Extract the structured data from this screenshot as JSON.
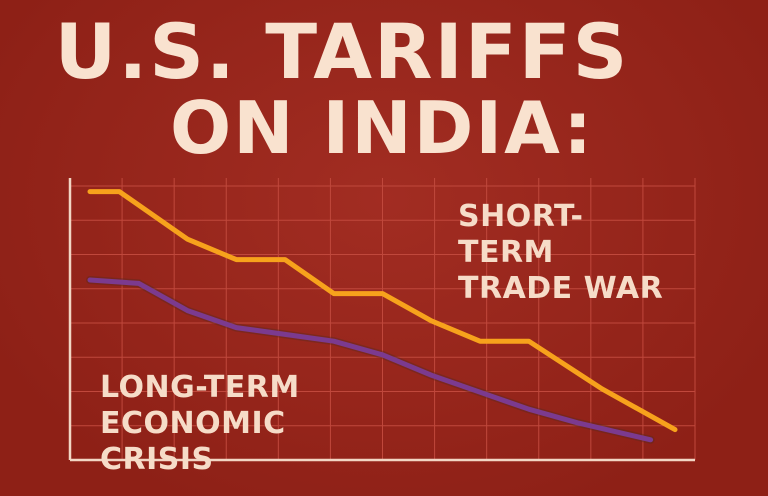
{
  "title": {
    "line1": "U.S. TARIFFS",
    "line2": "ON INDIA:"
  },
  "colors": {
    "background": "#9e2419",
    "title_text": "#f9e2cf",
    "grid": "#c0483c",
    "axis": "#f2d6c4",
    "short_term_line": "#f7a21c",
    "long_term_line": "#7b3a8f"
  },
  "chart_data": {
    "type": "line",
    "title": "U.S. TARIFFS ON INDIA:",
    "xlabel": "",
    "ylabel": "",
    "grid": true,
    "xlim": [
      0,
      12
    ],
    "ylim": [
      0,
      8
    ],
    "series": [
      {
        "name": "SHORT-TERM TRADE WAR",
        "x": [
          0,
          0.6,
          2,
          3,
          4,
          5,
          6,
          7,
          8,
          9,
          10.5,
          12
        ],
        "y": [
          7.6,
          7.6,
          6.2,
          5.6,
          5.6,
          4.6,
          4.6,
          3.8,
          3.2,
          3.2,
          1.8,
          0.6
        ]
      },
      {
        "name": "LONG-TERM ECONOMIC CRISIS",
        "x": [
          0,
          1,
          2,
          3,
          4,
          5,
          6,
          7,
          8,
          9,
          10,
          11.5
        ],
        "y": [
          5.0,
          4.9,
          4.1,
          3.6,
          3.4,
          3.2,
          2.8,
          2.2,
          1.7,
          1.2,
          0.8,
          0.3
        ]
      }
    ]
  }
}
